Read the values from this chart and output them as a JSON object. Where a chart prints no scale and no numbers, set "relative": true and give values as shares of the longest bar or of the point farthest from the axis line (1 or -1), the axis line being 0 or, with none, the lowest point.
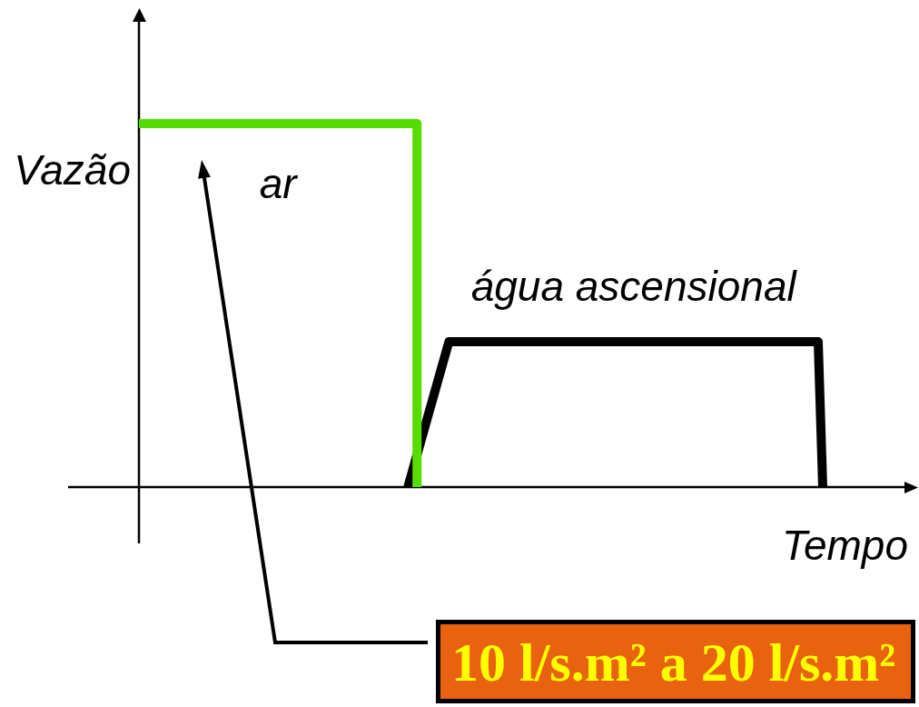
{
  "chart_data": {
    "type": "line",
    "relative": true,
    "xlabel": "Tempo",
    "ylabel": "Vazão",
    "categories": [
      null,
      null,
      null,
      null,
      null,
      null,
      null,
      null,
      null,
      null,
      null,
      null,
      null,
      null,
      null,
      null,
      null,
      null,
      null,
      null,
      null,
      null,
      null,
      null,
      null,
      null,
      null,
      null,
      null,
      null,
      null,
      null,
      null,
      null,
      null,
      null,
      null,
      null,
      null,
      null,
      null,
      null,
      null,
      null,
      null,
      null,
      null,
      null,
      null,
      null,
      null,
      null,
      null,
      null,
      null,
      null,
      null,
      null,
      null,
      null,
      null,
      null,
      null,
      null,
      null,
      null,
      null,
      null,
      null,
      null,
      null,
      null,
      null,
      null,
      null,
      null,
      null,
      null,
      null,
      null,
      null,
      null,
      null,
      null,
      null,
      null,
      null,
      null,
      null,
      null,
      null,
      null,
      null,
      null,
      null,
      null,
      null,
      null,
      null,
      null,
      null,
      null,
      null,
      null,
      null,
      null,
      null,
      null,
      null,
      null,
      null,
      null,
      null,
      null,
      null,
      null,
      null,
      null,
      null,
      null,
      null,
      null,
      null,
      null,
      null,
      null,
      null,
      null,
      null,
      null,
      null,
      null,
      null,
      null,
      null,
      null,
      null,
      null,
      null,
      null,
      null,
      null,
      null,
      null,
      null,
      null,
      null,
      null,
      null,
      null,
      null
    ],
    "series": [
      {
        "name": "ar",
        "type": "step",
        "color": "#55dd00",
        "values": [
          1,
          null,
          null,
          null,
          null,
          null,
          null,
          null,
          null,
          null,
          null,
          null,
          null,
          null,
          null,
          null,
          null,
          null,
          null,
          null,
          null,
          null,
          null,
          null,
          null,
          null,
          null,
          null,
          null,
          null,
          null,
          null,
          null,
          null,
          null,
          null,
          null,
          null,
          null,
          null,
          null,
          null,
          null,
          null,
          null,
          null,
          null,
          null,
          null,
          null,
          null,
          null,
          null,
          null,
          null,
          null,
          null,
          null,
          null,
          null,
          null,
          0,
          null,
          null,
          null,
          null,
          null,
          null,
          null,
          null,
          null,
          null,
          null,
          null,
          null,
          null,
          null,
          null,
          null,
          null,
          null,
          null,
          null,
          null,
          null,
          null,
          null,
          null,
          null,
          null,
          null,
          null,
          null,
          null,
          null,
          null,
          null,
          null,
          null,
          null,
          null,
          null,
          null,
          null,
          null,
          null,
          null,
          null,
          null,
          null,
          null,
          null,
          null,
          null,
          null,
          null,
          null,
          null,
          null,
          null,
          null,
          null,
          null,
          null,
          null,
          null,
          null,
          null,
          null,
          null,
          null,
          null,
          null,
          null,
          null,
          null,
          null,
          null,
          null,
          null,
          null,
          null,
          null,
          null,
          null,
          null,
          null,
          null,
          null,
          null,
          null
        ]
      },
      {
        "name": "água ascensional",
        "color": "#000000",
        "values": [
          null,
          null,
          null,
          null,
          null,
          null,
          null,
          null,
          null,
          null,
          null,
          null,
          null,
          null,
          null,
          null,
          null,
          null,
          null,
          null,
          null,
          null,
          null,
          null,
          null,
          null,
          null,
          null,
          null,
          null,
          null,
          null,
          null,
          null,
          null,
          null,
          null,
          null,
          null,
          null,
          null,
          null,
          null,
          null,
          null,
          null,
          null,
          null,
          null,
          null,
          null,
          null,
          null,
          null,
          null,
          null,
          null,
          null,
          null,
          0,
          null,
          null,
          null,
          null,
          null,
          null,
          null,
          null,
          0.4,
          null,
          null,
          null,
          null,
          null,
          null,
          null,
          null,
          null,
          null,
          null,
          null,
          null,
          null,
          null,
          null,
          null,
          null,
          null,
          null,
          null,
          null,
          null,
          null,
          null,
          null,
          null,
          null,
          null,
          null,
          null,
          null,
          null,
          null,
          null,
          null,
          null,
          null,
          null,
          null,
          null,
          null,
          null,
          null,
          null,
          null,
          null,
          null,
          null,
          null,
          null,
          null,
          null,
          null,
          null,
          null,
          null,
          null,
          null,
          null,
          null,
          null,
          null,
          null,
          null,
          null,
          null,
          null,
          null,
          null,
          null,
          null,
          null,
          null,
          null,
          null,
          null,
          null,
          null,
          null,
          0.4,
          0
        ]
      }
    ],
    "annotations": [
      "10 l/s.m² a 20 l/s.m²"
    ]
  }
}
